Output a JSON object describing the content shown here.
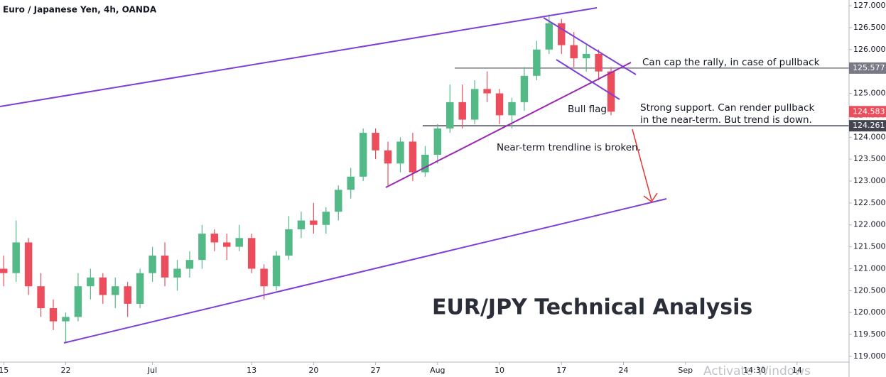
{
  "chart_data": {
    "type": "candlestick",
    "title": "Euro / Japanese Yen, 4h, OANDA",
    "headline": "EUR/JPY Technical Analysis",
    "colors": {
      "up": "#53b987",
      "down": "#eb4d5c"
    },
    "open": [
      121.0,
      120.9,
      121.6,
      120.6,
      120.1,
      119.8,
      119.9,
      120.6,
      120.8,
      120.4,
      120.6,
      120.2,
      120.9,
      121.3,
      120.8,
      121.0,
      121.2,
      121.8,
      121.6,
      121.5,
      121.7,
      121.0,
      120.6,
      121.3,
      121.9,
      122.1,
      122.0,
      122.3,
      122.8,
      123.1,
      124.1,
      123.7,
      123.4,
      123.9,
      123.2,
      123.6,
      124.2,
      124.8,
      124.4,
      125.1,
      125.0,
      124.5,
      124.8,
      125.4,
      126.0,
      126.6,
      126.1,
      125.8,
      125.9,
      125.5
    ],
    "high": [
      121.3,
      122.1,
      121.7,
      120.9,
      120.3,
      120.0,
      120.9,
      121.0,
      120.9,
      120.8,
      120.7,
      121.0,
      121.5,
      121.6,
      121.2,
      121.4,
      122.0,
      121.9,
      121.8,
      122.0,
      121.8,
      121.1,
      121.4,
      122.2,
      122.3,
      122.5,
      122.4,
      122.9,
      123.3,
      124.2,
      124.2,
      123.9,
      124.0,
      124.1,
      123.8,
      124.3,
      125.2,
      125.2,
      125.3,
      125.5,
      125.1,
      124.9,
      125.6,
      126.2,
      126.8,
      126.7,
      126.4,
      126.1,
      126.0,
      125.6
    ],
    "low": [
      120.6,
      120.7,
      120.4,
      119.9,
      119.6,
      119.3,
      119.8,
      120.3,
      120.2,
      120.1,
      119.9,
      120.1,
      120.7,
      120.6,
      120.5,
      120.8,
      121.0,
      121.4,
      121.2,
      121.4,
      120.9,
      120.3,
      120.5,
      121.2,
      121.7,
      121.8,
      121.8,
      122.1,
      122.6,
      123.0,
      123.5,
      122.9,
      123.2,
      123.0,
      123.1,
      123.4,
      124.1,
      124.2,
      124.3,
      124.8,
      124.3,
      124.2,
      124.6,
      125.3,
      125.9,
      125.9,
      125.6,
      125.5,
      125.3,
      124.5
    ],
    "close": [
      120.9,
      121.6,
      120.6,
      120.1,
      119.8,
      119.9,
      120.6,
      120.8,
      120.4,
      120.6,
      120.2,
      120.9,
      121.3,
      120.8,
      121.0,
      121.2,
      121.8,
      121.6,
      121.5,
      121.7,
      121.0,
      120.6,
      121.3,
      121.9,
      122.1,
      122.0,
      122.3,
      122.8,
      123.1,
      124.1,
      123.7,
      123.4,
      123.9,
      123.2,
      123.6,
      124.2,
      124.8,
      124.4,
      125.1,
      125.0,
      124.5,
      124.8,
      125.4,
      126.0,
      126.6,
      126.1,
      125.8,
      125.9,
      125.5,
      124.583
    ],
    "ylim": [
      118.87,
      127.13
    ],
    "yticks": [
      {
        "value": 119,
        "label": "119.000"
      },
      {
        "value": 119.5,
        "label": "119.500"
      },
      {
        "value": 120,
        "label": "120.000"
      },
      {
        "value": 120.5,
        "label": "120.500"
      },
      {
        "value": 121,
        "label": "121.000"
      },
      {
        "value": 121.5,
        "label": "121.500"
      },
      {
        "value": 122,
        "label": "122.000"
      },
      {
        "value": 122.5,
        "label": "122.500"
      },
      {
        "value": 123,
        "label": "123.000"
      },
      {
        "value": 123.5,
        "label": "123.500"
      },
      {
        "value": 124,
        "label": "124.000"
      },
      {
        "value": 124.5,
        "label": "124.500"
      },
      {
        "value": 125,
        "label": "125.000"
      },
      {
        "value": 125.5,
        "label": "125.500"
      },
      {
        "value": 126,
        "label": "126.000"
      },
      {
        "value": 126.5,
        "label": "126.500"
      },
      {
        "value": 127,
        "label": "127.000"
      }
    ],
    "xlim": [
      -0.3,
      68.2
    ],
    "xticks": [
      {
        "value": 0,
        "label": "15"
      },
      {
        "value": 5,
        "label": "22"
      },
      {
        "value": 12,
        "label": "Jul"
      },
      {
        "value": 20,
        "label": "13"
      },
      {
        "value": 25,
        "label": "20"
      },
      {
        "value": 30,
        "label": "27"
      },
      {
        "value": 35,
        "label": "Aug"
      },
      {
        "value": 40,
        "label": "10"
      },
      {
        "value": 45,
        "label": "17"
      },
      {
        "value": 50,
        "label": "24"
      },
      {
        "value": 55,
        "label": "Sep"
      },
      {
        "value": 64,
        "label": "14"
      }
    ],
    "crosshair_label": "14:30",
    "levels": [
      {
        "value": 125.577,
        "color": "#787b86"
      },
      {
        "value": 124.261,
        "color": "#434651"
      }
    ],
    "annotations": [
      "Can cap the rally, in case of pullback",
      "Strong support. Can render pullback",
      "in the near-term. But trend is down.",
      "Near-term trendline is broken.",
      "Bull flag"
    ],
    "watermark": "Activate Windows"
  }
}
